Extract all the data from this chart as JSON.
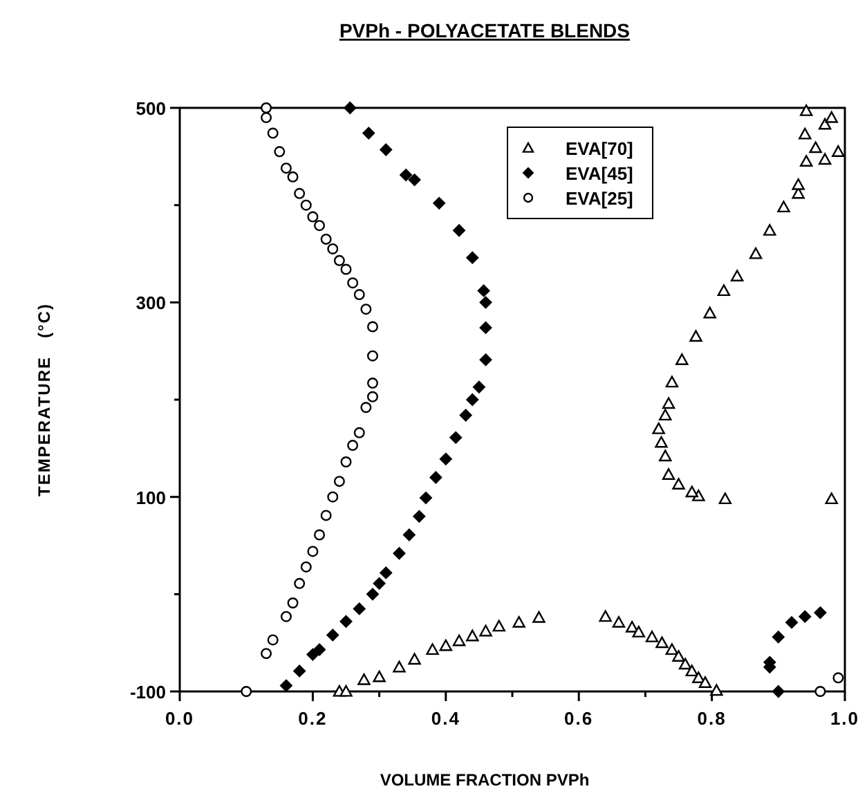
{
  "chart_data": {
    "type": "scatter",
    "title": "PVPh - POLYACETATE BLENDS",
    "xlabel": "VOLUME FRACTION PVPh",
    "ylabel": "TEMPERATURE   (°C)",
    "xlim": [
      0,
      1
    ],
    "ylim": [
      -100,
      500
    ],
    "xticks": [
      {
        "value": 0,
        "label": "0.0"
      },
      {
        "value": 0.1,
        "label": null
      },
      {
        "value": 0.2,
        "label": "0.2"
      },
      {
        "value": 0.3,
        "label": null
      },
      {
        "value": 0.4,
        "label": "0.4"
      },
      {
        "value": 0.5,
        "label": null
      },
      {
        "value": 0.6,
        "label": "0.6"
      },
      {
        "value": 0.7,
        "label": null
      },
      {
        "value": 0.8,
        "label": "0.8"
      },
      {
        "value": 0.9,
        "label": null
      },
      {
        "value": 1,
        "label": "1.0"
      }
    ],
    "yticks": [
      -100,
      {
        "value": 0,
        "label": null
      },
      100,
      {
        "value": 200,
        "label": null
      },
      300,
      {
        "value": 400,
        "label": null
      },
      500
    ],
    "legend": "top right",
    "grid": false,
    "series": [
      {
        "name": "EVA[70]",
        "color": "#000000",
        "marker": "triangle",
        "x": [
          0.24,
          0.25,
          0.277,
          0.3,
          0.33,
          0.353,
          0.38,
          0.4,
          0.42,
          0.44,
          0.46,
          0.48,
          0.51,
          0.54,
          0.64,
          0.66,
          0.68,
          0.69,
          0.71,
          0.725,
          0.74,
          0.75,
          0.76,
          0.77,
          0.78,
          0.79,
          0.807,
          0.82,
          0.98,
          0.78,
          0.77,
          0.75,
          0.735,
          0.73,
          0.724,
          0.72,
          0.73,
          0.735,
          0.74,
          0.755,
          0.776,
          0.797,
          0.818,
          0.838,
          0.866,
          0.887,
          0.908,
          0.93,
          0.93,
          0.942,
          0.956,
          0.97,
          0.97,
          0.98,
          0.99,
          0.942,
          0.94
        ],
        "values": [
          -100,
          -100,
          -88,
          -85,
          -75,
          -67,
          -57,
          -53,
          -48,
          -43,
          -38,
          -33,
          -29,
          -24,
          -23,
          -29,
          -34,
          -39,
          -44,
          -50,
          -57,
          -64,
          -72,
          -79,
          -86,
          -91,
          -99,
          98,
          98,
          101,
          105,
          113,
          123,
          142,
          156,
          170,
          184,
          196,
          218,
          241,
          265,
          289,
          312,
          327,
          350,
          374,
          398,
          412,
          421,
          445,
          459,
          447,
          483,
          490,
          455,
          497,
          473
        ]
      },
      {
        "name": "EVA[45]",
        "color": "#000000",
        "marker": "diamond",
        "x": [
          0.16,
          0.18,
          0.2,
          0.21,
          0.23,
          0.25,
          0.27,
          0.29,
          0.3,
          0.31,
          0.33,
          0.345,
          0.36,
          0.37,
          0.385,
          0.4,
          0.415,
          0.43,
          0.44,
          0.45,
          0.46,
          0.46,
          0.46,
          0.457,
          0.44,
          0.42,
          0.39,
          0.353,
          0.34,
          0.31,
          0.284,
          0.256,
          0.9,
          0.887,
          0.887,
          0.9,
          0.92,
          0.94,
          0.963
        ],
        "values": [
          -94,
          -79,
          -62,
          -57,
          -42,
          -28,
          -15,
          0,
          11,
          22,
          42,
          61,
          80,
          99,
          120,
          139,
          161,
          184,
          200,
          213,
          241,
          274,
          300,
          312,
          346,
          374,
          402,
          426,
          431,
          457,
          474,
          500,
          -100,
          -75,
          -70,
          -44,
          -29,
          -23,
          -19
        ]
      },
      {
        "name": "EVA[25]",
        "color": "#000000",
        "marker": "circle",
        "x": [
          0.1,
          0.13,
          0.14,
          0.16,
          0.17,
          0.18,
          0.19,
          0.2,
          0.21,
          0.22,
          0.23,
          0.24,
          0.25,
          0.26,
          0.27,
          0.28,
          0.29,
          0.29,
          0.29,
          0.29,
          0.28,
          0.27,
          0.26,
          0.25,
          0.24,
          0.23,
          0.22,
          0.21,
          0.2,
          0.19,
          0.18,
          0.17,
          0.16,
          0.15,
          0.14,
          0.13,
          0.13,
          0.963,
          0.99
        ],
        "values": [
          -100,
          -61,
          -47,
          -23,
          -9,
          11,
          28,
          44,
          61,
          81,
          100,
          116,
          136,
          153,
          166,
          192,
          203,
          217,
          245,
          275,
          293,
          308,
          320,
          334,
          343,
          355,
          365,
          379,
          388,
          400,
          412,
          429,
          438,
          455,
          474,
          490,
          500,
          -100,
          -86
        ]
      }
    ]
  }
}
